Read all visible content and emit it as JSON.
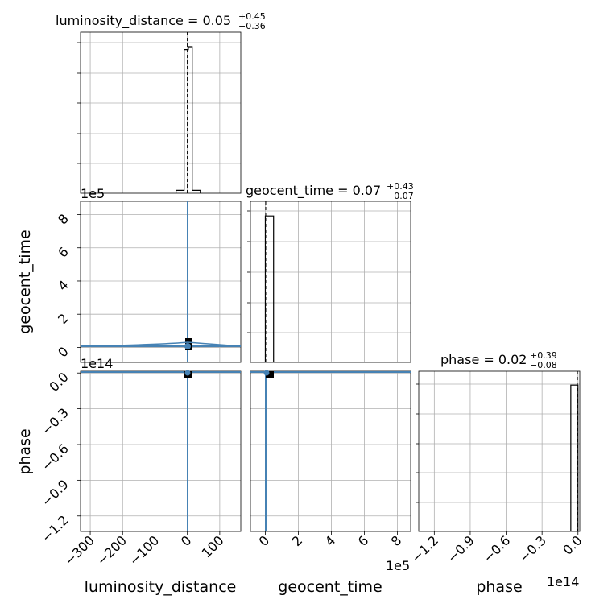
{
  "chart_data": {
    "type": "corner",
    "parameters": [
      "luminosity_distance",
      "geocent_time",
      "phase"
    ],
    "panels": {
      "luminosity_distance": {
        "title": "luminosity_distance = 0.05",
        "title_sup": "+0.45",
        "title_sub": "−0.36",
        "xlim": [
          -330,
          165
        ],
        "hist_x": [
          -35,
          -10,
          3,
          15,
          40
        ],
        "hist_values": [
          0.02,
          0.98,
          1.0,
          0.02
        ],
        "median": 0.05,
        "quantile_lines": [
          -0.31,
          0.05,
          0.5
        ]
      },
      "geocent_time": {
        "title": "geocent_time = 0.07",
        "title_sup": "+0.43",
        "title_sub": "−0.07",
        "xlim": [
          -90000,
          880000
        ],
        "ylim": [
          -90000,
          880000
        ],
        "hist_x": [
          0,
          50000
        ],
        "hist_values": [
          0.9
        ],
        "median": 0.07,
        "offset_label": "1e5",
        "ticks": [
          0,
          200000,
          400000,
          600000,
          800000
        ],
        "tick_labels": [
          "0",
          "2",
          "4",
          "6",
          "8"
        ]
      },
      "phase": {
        "title": "phase = 0.02",
        "title_sup": "+0.39",
        "title_sub": "−0.08",
        "xlim": [
          -133000000000000.0,
          1500000000000.0
        ],
        "ylim": [
          -133000000000000.0,
          1500000000000.0
        ],
        "hist_x": [
          -6000000000000.0,
          0
        ],
        "hist_values": [
          0.9
        ],
        "median": 0.02,
        "offset_label": "1e14",
        "ticks": [
          -120000000000000.0,
          -90000000000000.0,
          -60000000000000.0,
          -30000000000000.0,
          0
        ],
        "tick_labels": [
          "−1.2",
          "−0.9",
          "−0.6",
          "−0.3",
          "0.0"
        ]
      }
    },
    "luminosity_distance_ticks": [
      -300,
      -200,
      -100,
      0,
      100
    ],
    "luminosity_distance_tick_labels": [
      "−300",
      "−200",
      "−100",
      "0",
      "100"
    ],
    "xlabels": [
      "luminosity_distance",
      "geocent_time",
      "phase"
    ],
    "ylabels": [
      "geocent_time",
      "phase"
    ],
    "offset_labels": {
      "row1_y": "1e5",
      "row2_y": "1e14",
      "col1_x": "1e5",
      "col2_x": "1e14"
    },
    "grid": true,
    "colors": {
      "contour": "#4682b4",
      "hist": "#000000",
      "grid": "#b0b0b0",
      "median_line": "#000000"
    }
  }
}
